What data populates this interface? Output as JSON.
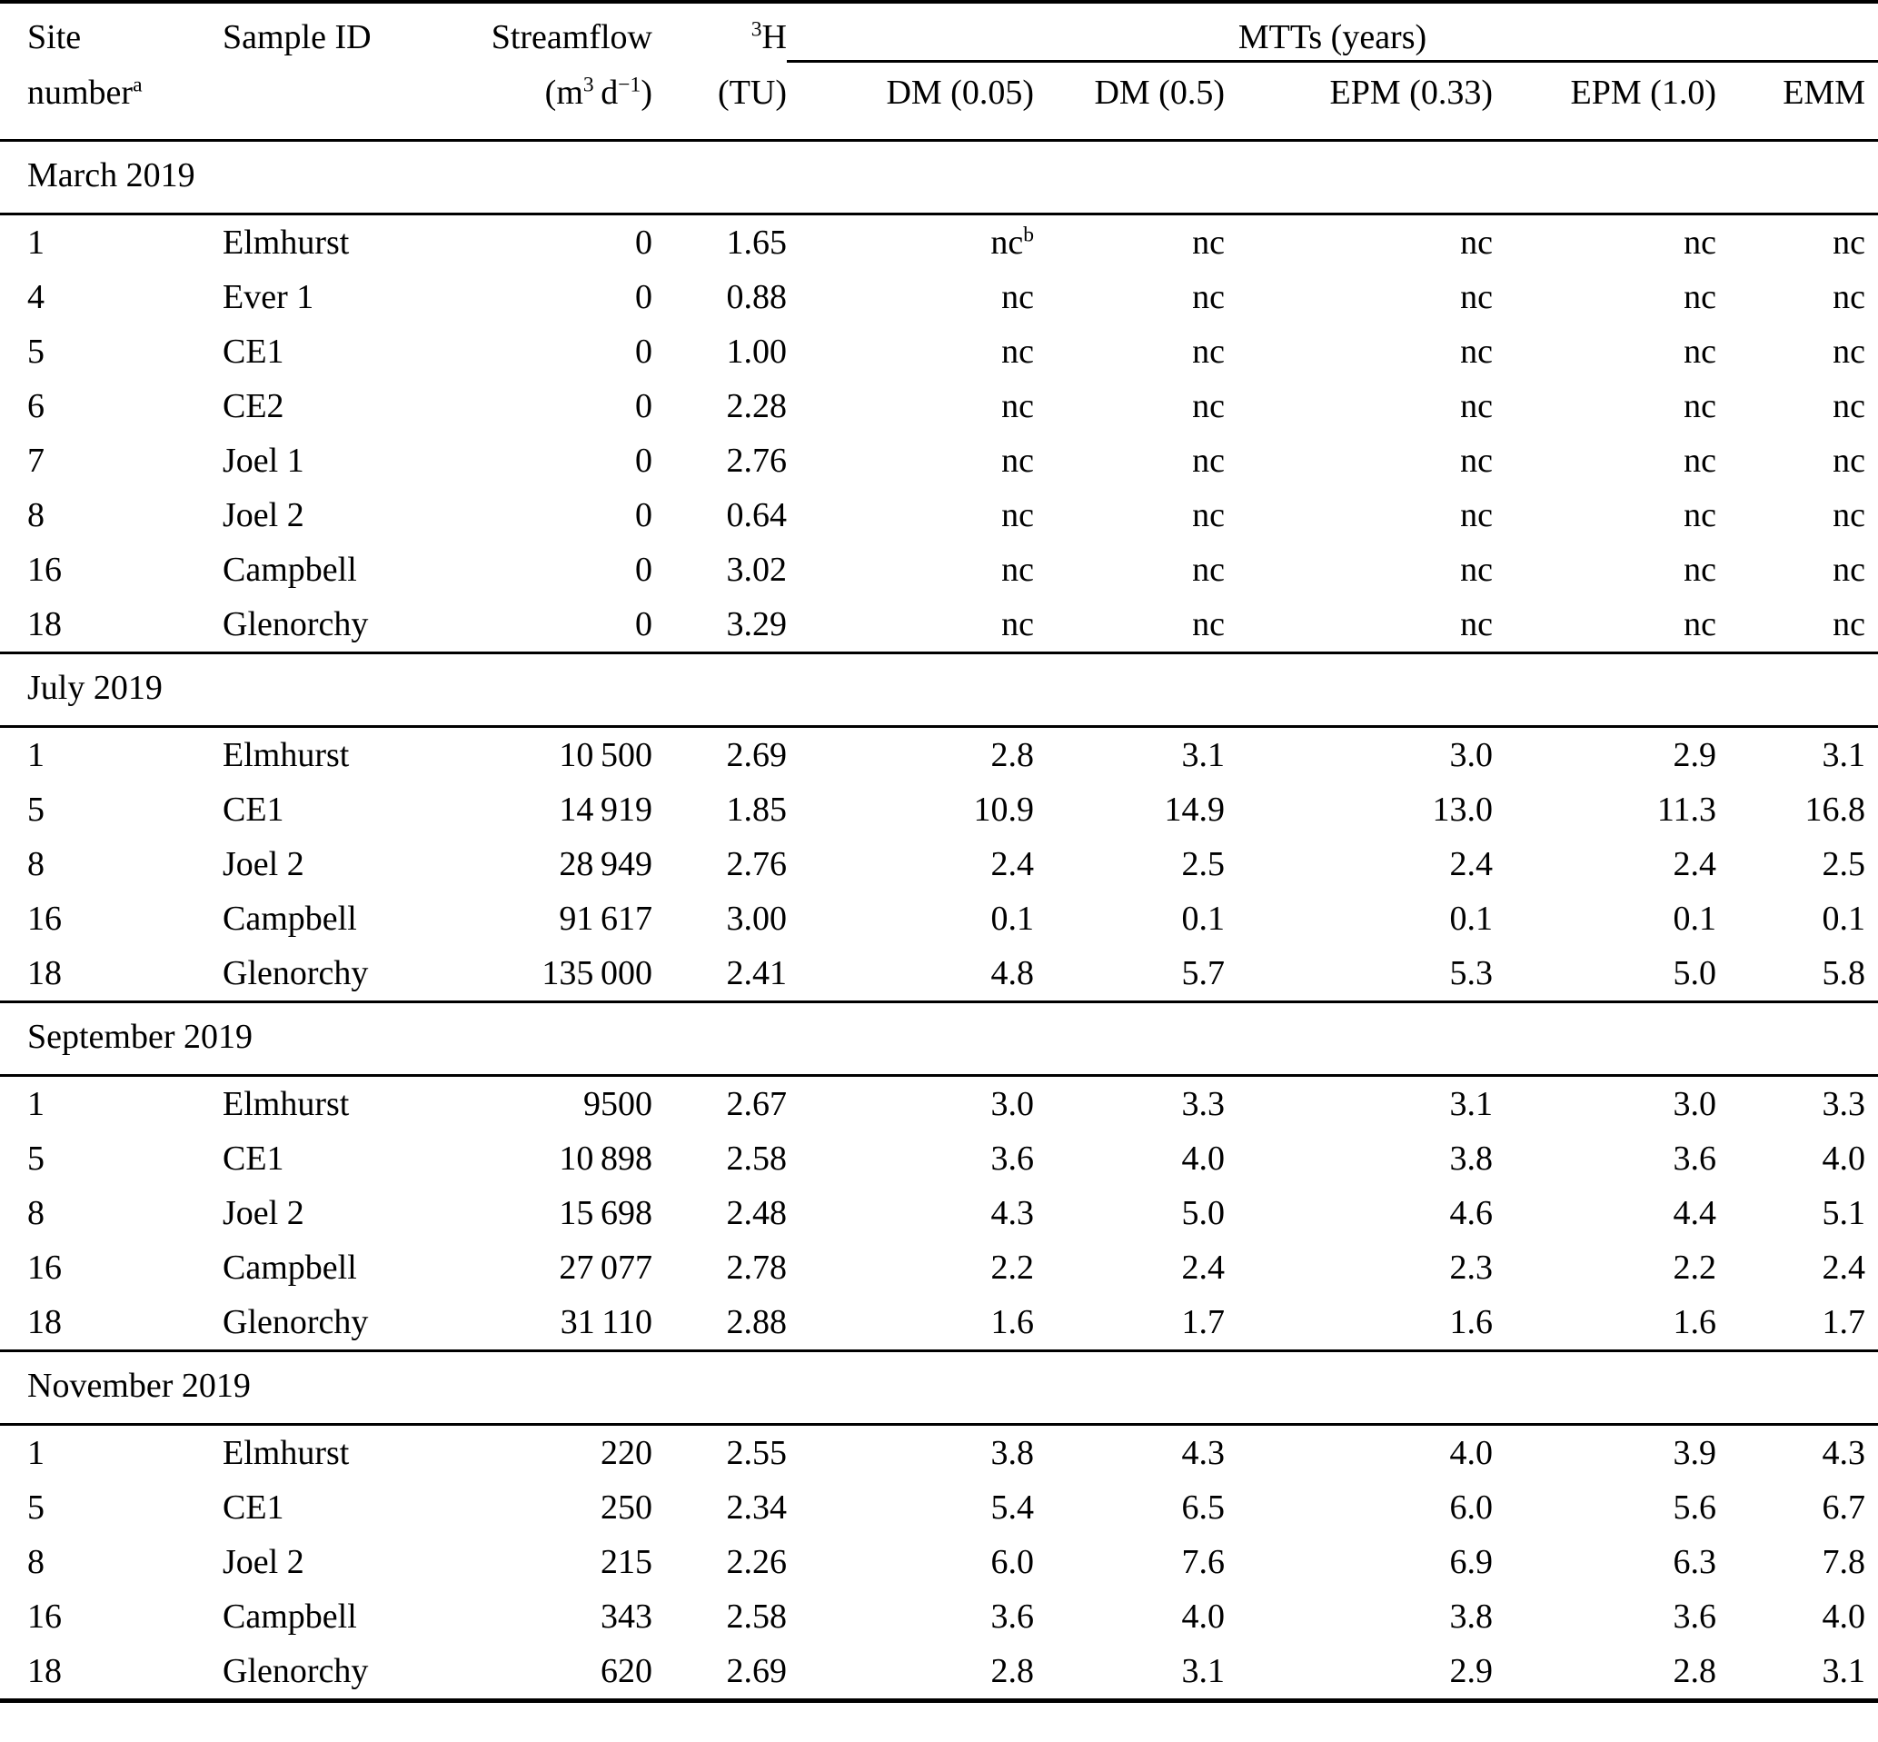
{
  "colors": {
    "text": "#000000",
    "background": "#ffffff",
    "rule": "#000000"
  },
  "table": {
    "headers": {
      "site_line1": "Site",
      "site_line2": "number",
      "site_footnote_sup": "a",
      "sample_id": "Sample ID",
      "streamflow": "Streamflow",
      "streamflow_unit": {
        "open": "(m",
        "sup1": "3",
        "mid": " d",
        "sup2": "−1",
        "close": ")"
      },
      "tritium": {
        "sup": "3",
        "base": "H"
      },
      "tritium_unit": "(TU)",
      "mtts_group": "MTTs (years)",
      "mtt_columns": [
        "DM (0.05)",
        "DM (0.5)",
        "EPM (0.33)",
        "EPM (1.0)",
        "EMM"
      ]
    },
    "not_calculated_label": "nc",
    "sections": [
      {
        "label": "March 2019",
        "rows": [
          {
            "site": "1",
            "sample": "Elmhurst",
            "flow": "0",
            "h3": "1.65",
            "mtts": [
              "nc",
              "nc",
              "nc",
              "nc",
              "nc"
            ],
            "mtt_sup_index": 0,
            "mtt_sup": "b"
          },
          {
            "site": "4",
            "sample": "Ever 1",
            "flow": "0",
            "h3": "0.88",
            "mtts": [
              "nc",
              "nc",
              "nc",
              "nc",
              "nc"
            ]
          },
          {
            "site": "5",
            "sample": "CE1",
            "flow": "0",
            "h3": "1.00",
            "mtts": [
              "nc",
              "nc",
              "nc",
              "nc",
              "nc"
            ]
          },
          {
            "site": "6",
            "sample": "CE2",
            "flow": "0",
            "h3": "2.28",
            "mtts": [
              "nc",
              "nc",
              "nc",
              "nc",
              "nc"
            ]
          },
          {
            "site": "7",
            "sample": "Joel 1",
            "flow": "0",
            "h3": "2.76",
            "mtts": [
              "nc",
              "nc",
              "nc",
              "nc",
              "nc"
            ]
          },
          {
            "site": "8",
            "sample": "Joel 2",
            "flow": "0",
            "h3": "0.64",
            "mtts": [
              "nc",
              "nc",
              "nc",
              "nc",
              "nc"
            ]
          },
          {
            "site": "16",
            "sample": "Campbell",
            "flow": "0",
            "h3": "3.02",
            "mtts": [
              "nc",
              "nc",
              "nc",
              "nc",
              "nc"
            ]
          },
          {
            "site": "18",
            "sample": "Glenorchy",
            "flow": "0",
            "h3": "3.29",
            "mtts": [
              "nc",
              "nc",
              "nc",
              "nc",
              "nc"
            ]
          }
        ]
      },
      {
        "label": "July 2019",
        "rows": [
          {
            "site": "1",
            "sample": "Elmhurst",
            "flow": "10 500",
            "h3": "2.69",
            "mtts": [
              "2.8",
              "3.1",
              "3.0",
              "2.9",
              "3.1"
            ]
          },
          {
            "site": "5",
            "sample": "CE1",
            "flow": "14 919",
            "h3": "1.85",
            "mtts": [
              "10.9",
              "14.9",
              "13.0",
              "11.3",
              "16.8"
            ]
          },
          {
            "site": "8",
            "sample": "Joel 2",
            "flow": "28 949",
            "h3": "2.76",
            "mtts": [
              "2.4",
              "2.5",
              "2.4",
              "2.4",
              "2.5"
            ]
          },
          {
            "site": "16",
            "sample": "Campbell",
            "flow": "91 617",
            "h3": "3.00",
            "mtts": [
              "0.1",
              "0.1",
              "0.1",
              "0.1",
              "0.1"
            ]
          },
          {
            "site": "18",
            "sample": "Glenorchy",
            "flow": "135 000",
            "h3": "2.41",
            "mtts": [
              "4.8",
              "5.7",
              "5.3",
              "5.0",
              "5.8"
            ]
          }
        ]
      },
      {
        "label": "September 2019",
        "rows": [
          {
            "site": "1",
            "sample": "Elmhurst",
            "flow": "9500",
            "h3": "2.67",
            "mtts": [
              "3.0",
              "3.3",
              "3.1",
              "3.0",
              "3.3"
            ]
          },
          {
            "site": "5",
            "sample": "CE1",
            "flow": "10 898",
            "h3": "2.58",
            "mtts": [
              "3.6",
              "4.0",
              "3.8",
              "3.6",
              "4.0"
            ]
          },
          {
            "site": "8",
            "sample": "Joel 2",
            "flow": "15 698",
            "h3": "2.48",
            "mtts": [
              "4.3",
              "5.0",
              "4.6",
              "4.4",
              "5.1"
            ]
          },
          {
            "site": "16",
            "sample": "Campbell",
            "flow": "27 077",
            "h3": "2.78",
            "mtts": [
              "2.2",
              "2.4",
              "2.3",
              "2.2",
              "2.4"
            ]
          },
          {
            "site": "18",
            "sample": "Glenorchy",
            "flow": "31 110",
            "h3": "2.88",
            "mtts": [
              "1.6",
              "1.7",
              "1.6",
              "1.6",
              "1.7"
            ]
          }
        ]
      },
      {
        "label": "November 2019",
        "rows": [
          {
            "site": "1",
            "sample": "Elmhurst",
            "flow": "220",
            "h3": "2.55",
            "mtts": [
              "3.8",
              "4.3",
              "4.0",
              "3.9",
              "4.3"
            ]
          },
          {
            "site": "5",
            "sample": "CE1",
            "flow": "250",
            "h3": "2.34",
            "mtts": [
              "5.4",
              "6.5",
              "6.0",
              "5.6",
              "6.7"
            ]
          },
          {
            "site": "8",
            "sample": "Joel 2",
            "flow": "215",
            "h3": "2.26",
            "mtts": [
              "6.0",
              "7.6",
              "6.9",
              "6.3",
              "7.8"
            ]
          },
          {
            "site": "16",
            "sample": "Campbell",
            "flow": "343",
            "h3": "2.58",
            "mtts": [
              "3.6",
              "4.0",
              "3.8",
              "3.6",
              "4.0"
            ]
          },
          {
            "site": "18",
            "sample": "Glenorchy",
            "flow": "620",
            "h3": "2.69",
            "mtts": [
              "2.8",
              "3.1",
              "2.9",
              "2.8",
              "3.1"
            ]
          }
        ]
      }
    ]
  }
}
